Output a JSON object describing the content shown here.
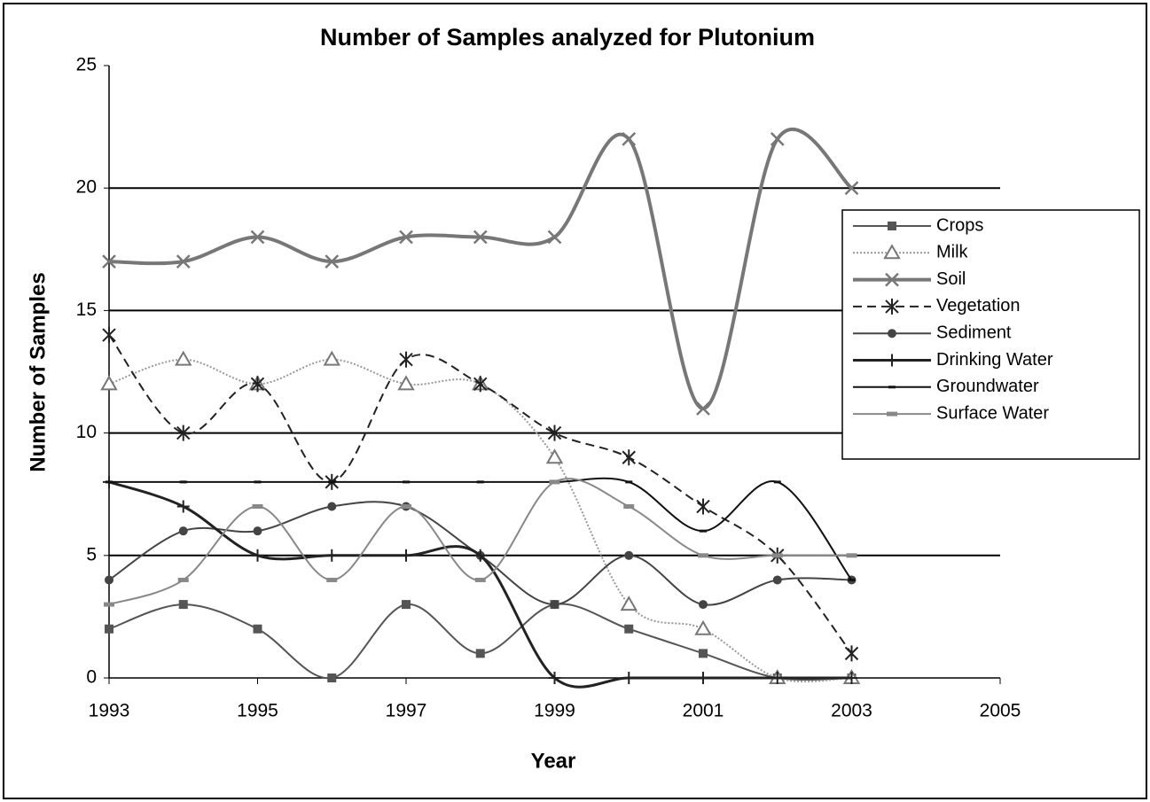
{
  "chart_data": {
    "type": "line",
    "title": "Number of Samples analyzed for Plutonium",
    "x_label": "Year",
    "y_label": "Number of Samples",
    "x": [
      1993,
      1994,
      1995,
      1996,
      1997,
      1998,
      1999,
      2000,
      2001,
      2002,
      2003
    ],
    "xlim": [
      1993,
      2005
    ],
    "xticks": [
      1993,
      1995,
      1997,
      1999,
      2001,
      2003,
      2005
    ],
    "ylim": [
      0,
      25
    ],
    "yticks": [
      0,
      5,
      10,
      15,
      20,
      25
    ],
    "grid": true,
    "smooth": true,
    "legend": "right",
    "series": [
      {
        "name": "Crops",
        "color": "#555555",
        "marker": "square",
        "dash": "solid",
        "width": 2,
        "values": [
          2,
          3,
          2,
          0,
          3,
          1,
          3,
          2,
          1,
          0,
          0
        ]
      },
      {
        "name": "Milk",
        "color": "#999999",
        "marker": "triangle",
        "dash": "dotted",
        "width": 2,
        "values": [
          12,
          13,
          12,
          13,
          12,
          12,
          9,
          3,
          2,
          0,
          0
        ]
      },
      {
        "name": "Soil",
        "color": "#777777",
        "marker": "x",
        "dash": "solid",
        "width": 4,
        "values": [
          17,
          17,
          18,
          17,
          18,
          18,
          18,
          22,
          11,
          22,
          20
        ]
      },
      {
        "name": "Vegetation",
        "color": "#222222",
        "marker": "asterisk",
        "dash": "dashed",
        "width": 2,
        "values": [
          14,
          10,
          12,
          8,
          13,
          12,
          10,
          9,
          7,
          5,
          1
        ]
      },
      {
        "name": "Sediment",
        "color": "#444444",
        "marker": "circle",
        "dash": "solid",
        "width": 2,
        "values": [
          4,
          6,
          6,
          7,
          7,
          5,
          3,
          5,
          3,
          4,
          4
        ]
      },
      {
        "name": "Drinking Water",
        "color": "#222222",
        "marker": "plus",
        "dash": "solid",
        "width": 3,
        "values": [
          8,
          7,
          5,
          5,
          5,
          5,
          0,
          0,
          0,
          0,
          0
        ]
      },
      {
        "name": "Groundwater",
        "color": "#111111",
        "marker": "dash",
        "dash": "solid",
        "width": 2,
        "values": [
          8,
          8,
          8,
          8,
          8,
          8,
          8,
          8,
          6,
          8,
          4
        ]
      },
      {
        "name": "Surface Water",
        "color": "#888888",
        "marker": "bar",
        "dash": "solid",
        "width": 2,
        "values": [
          3,
          4,
          7,
          4,
          7,
          4,
          8,
          7,
          5,
          5,
          5
        ]
      }
    ]
  }
}
